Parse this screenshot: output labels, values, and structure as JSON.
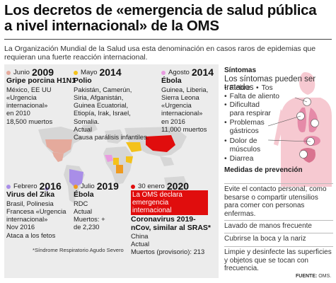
{
  "title": {
    "line1": "Los decretos de «emergencia de salud pública",
    "line2": "a nivel internacional»  de la OMS"
  },
  "intro": "La Organización Mundial de la Salud usa esta denominación en casos raros de epidemias que requieran una fuerte reacción internacional.",
  "events": [
    {
      "month": "Junio",
      "year": "2009",
      "color": "#e5aa9c",
      "name": "Gripe porcina H1N1",
      "lines": [
        "México, EE UU",
        "«Urgencia",
        "internacional»",
        "en 2010",
        "18,500 muertos"
      ]
    },
    {
      "month": "Mayo",
      "year": "2014",
      "color": "#f4c21a",
      "name": "Polio",
      "lines": [
        "Pakistán, Camerún,",
        "Siria, Afganistán,",
        "Guinea Ecuatorial,",
        "Etiopía, Irak, Israel,",
        "Somalia.",
        "Actual",
        "Causa parálisis infantiles."
      ]
    },
    {
      "month": "Agosto",
      "year": "2014",
      "color": "#e99be0",
      "name": "Ébola",
      "lines": [
        "Guinea, Liberia,",
        "Sierra Leona",
        "«Urgencia",
        "internacional»",
        "en 2016",
        "11,000 muertos"
      ]
    },
    {
      "month": "Febrero",
      "year": "2016",
      "color": "#a98ee8",
      "name": "Virus del Zika",
      "lines": [
        "Brasil, Polinesia",
        "Francesa «Urgencia",
        "internacional»",
        "Nov 2016",
        "Ataca a los fetos"
      ]
    },
    {
      "month": "Julio",
      "year": "2019",
      "color": "#ef9a1f",
      "name": "Ébola",
      "lines": [
        "RDC",
        "Actual",
        "Muertos: +",
        "de 2,230"
      ]
    },
    {
      "month": "30 enero",
      "year": "2020",
      "color": "#e00d0d",
      "alert": [
        "La OMS declara",
        "emergencia internacional"
      ],
      "name": "Coronavirus 2019-nCov, similar al SRAS*",
      "lines": [
        "China",
        "Actual",
        "Muertos (provisorio): 213"
      ]
    }
  ],
  "footnote": "*Síndrome Respiratorio Agudo Severo",
  "symptoms": {
    "title": "Síntomas",
    "subtitle": "Los síntomas pueden ser tratados",
    "items": [
      "Fiebre",
      "Tos",
      "Falta de aliento",
      "Dificultad para respirar",
      "Problemas gástricos",
      "Dolor de músculos",
      "Diarrea"
    ]
  },
  "prevention": {
    "title": "Medidas de prevención",
    "items": [
      "Evite el contacto personal, como besarse o compartir utensilios para comer con personas enfermas.",
      "Lavado de manos frecuente",
      "Cubrirse la boca y la nariz",
      "Limpie y desinfecte las superficies y objetos que se tocan con frecuencia."
    ]
  },
  "source": {
    "label": "FUENTE:",
    "value": "OMS."
  }
}
